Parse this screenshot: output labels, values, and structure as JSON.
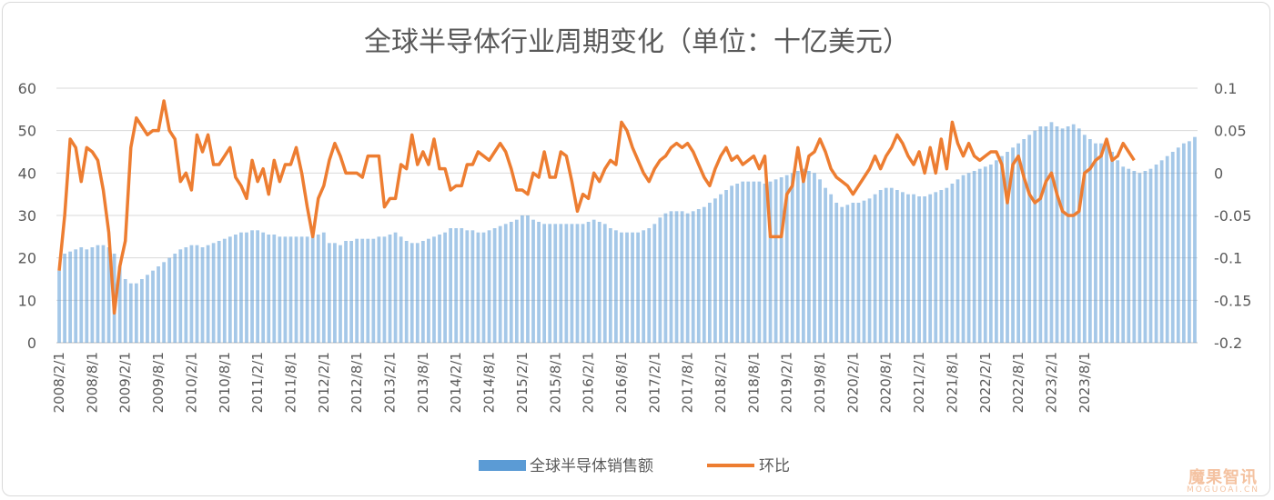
{
  "chart_data": {
    "type": "bar+line",
    "title": "全球半导体行业周期变化（单位：十亿美元）",
    "x_start": "2008/2/1",
    "x_tick_labels": [
      "2008/2/1",
      "2008/8/1",
      "2009/2/1",
      "2009/8/1",
      "2010/2/1",
      "2010/8/1",
      "2011/2/1",
      "2011/8/1",
      "2012/2/1",
      "2012/8/1",
      "2013/2/1",
      "2013/8/1",
      "2014/2/1",
      "2014/8/1",
      "2015/2/1",
      "2015/8/1",
      "2016/2/1",
      "2016/8/1",
      "2017/2/1",
      "2017/8/1",
      "2018/2/1",
      "2018/8/1",
      "2019/2/1",
      "2019/8/1",
      "2020/2/1",
      "2020/8/1",
      "2021/2/1",
      "2021/8/1",
      "2022/2/1",
      "2022/8/1",
      "2023/2/1",
      "2023/8/1"
    ],
    "y_left": {
      "ticks": [
        "0",
        "10",
        "20",
        "30",
        "40",
        "50",
        "60"
      ],
      "range": [
        0,
        60
      ]
    },
    "y_right": {
      "ticks": [
        "-0.2",
        "-0.15",
        "-0.1",
        "-0.05",
        "0",
        "0.05",
        "0.1"
      ],
      "range": [
        -0.2,
        0.1
      ]
    },
    "legend_position": "bottom",
    "series": [
      {
        "name": "全球半导体销售额",
        "type": "bar",
        "axis": "left",
        "color": "#5b9bd5",
        "values": [
          17,
          21,
          21.5,
          22,
          22.5,
          22,
          22.5,
          23,
          23,
          22.5,
          21,
          18,
          15,
          14,
          14,
          15,
          16,
          17,
          18,
          19,
          20,
          21,
          22,
          22.5,
          23,
          23,
          22.5,
          23,
          23.5,
          24,
          24.5,
          25,
          25.5,
          26,
          26,
          26.5,
          26.5,
          26,
          25.5,
          25.5,
          25,
          25,
          25,
          25,
          25,
          25,
          25,
          25.5,
          26,
          23.5,
          23.5,
          23,
          24,
          24,
          24.5,
          24.5,
          24.5,
          24.5,
          25,
          25,
          25.5,
          26,
          25,
          24,
          23.5,
          23.5,
          24,
          24.5,
          25,
          25.5,
          26,
          27,
          27,
          27,
          26.5,
          26.5,
          26,
          26,
          26.5,
          27,
          27.5,
          28,
          28.5,
          29,
          30,
          30,
          29,
          28.5,
          28,
          28,
          28,
          28,
          28,
          28,
          28,
          28,
          28.5,
          29,
          28.5,
          28,
          27,
          26.5,
          26,
          26,
          26,
          26,
          26.5,
          27,
          28,
          29.5,
          30.5,
          31,
          31,
          31,
          30.5,
          31,
          31.5,
          32,
          33,
          34,
          35,
          36,
          37,
          37.5,
          38,
          38,
          38,
          38,
          37.5,
          38,
          38.5,
          39,
          39.5,
          40,
          40.5,
          41,
          40.5,
          40,
          38.5,
          36.5,
          35,
          33,
          32,
          32.5,
          33,
          33,
          33.5,
          34,
          35,
          36,
          36.5,
          36.5,
          36,
          35.5,
          35,
          35,
          34.5,
          34.5,
          35,
          35.5,
          36,
          36.5,
          37.5,
          38.5,
          39.5,
          40,
          40.5,
          41,
          41.5,
          42,
          43,
          44,
          45,
          46,
          47,
          48,
          49,
          50,
          51,
          51,
          52,
          51,
          50.5,
          51,
          51.5,
          50.5,
          49,
          48,
          47,
          47,
          46.5,
          45,
          43,
          41.5,
          41,
          40.5,
          40,
          40.5,
          41,
          42,
          43,
          44,
          45,
          46,
          47,
          47.5,
          48.5
        ]
      },
      {
        "name": "环比",
        "type": "line",
        "axis": "right",
        "color": "#ed7d31",
        "values": [
          -0.115,
          -0.05,
          0.04,
          0.03,
          -0.01,
          0.03,
          0.025,
          0.015,
          -0.02,
          -0.07,
          -0.165,
          -0.11,
          -0.08,
          0.03,
          0.065,
          0.055,
          0.045,
          0.05,
          0.05,
          0.085,
          0.05,
          0.04,
          -0.01,
          0,
          -0.02,
          0.045,
          0.025,
          0.045,
          0.01,
          0.01,
          0.02,
          0.03,
          -0.005,
          -0.015,
          -0.03,
          0.015,
          -0.01,
          0.005,
          -0.025,
          0.015,
          -0.01,
          0.01,
          0.01,
          0.03,
          0,
          -0.04,
          -0.075,
          -0.03,
          -0.015,
          0.015,
          0.035,
          0.02,
          0,
          0,
          0,
          -0.005,
          0.02,
          0.02,
          0.02,
          -0.04,
          -0.03,
          -0.03,
          0.01,
          0.005,
          0.045,
          0.01,
          0.025,
          0.01,
          0.04,
          0.005,
          0.005,
          -0.02,
          -0.015,
          -0.015,
          0.01,
          0.01,
          0.025,
          0.02,
          0.015,
          0.025,
          0.035,
          0.025,
          0.005,
          -0.02,
          -0.02,
          -0.025,
          0,
          -0.005,
          0.025,
          -0.005,
          -0.005,
          0.025,
          0.02,
          -0.01,
          -0.045,
          -0.025,
          -0.03,
          0,
          -0.01,
          0.005,
          0.015,
          0.01,
          0.06,
          0.05,
          0.03,
          0.015,
          0,
          -0.01,
          0.005,
          0.015,
          0.02,
          0.03,
          0.035,
          0.03,
          0.035,
          0.025,
          0.01,
          -0.005,
          -0.015,
          0.005,
          0.02,
          0.03,
          0.015,
          0.02,
          0.01,
          0.015,
          0.02,
          0.005,
          0.02,
          -0.075,
          -0.075,
          -0.075,
          -0.025,
          -0.015,
          0.03,
          -0.01,
          0.02,
          0.025,
          0.04,
          0.025,
          0.005,
          -0.005,
          -0.01,
          -0.015,
          -0.025,
          -0.015,
          -0.005,
          0.005,
          0.02,
          0.005,
          0.02,
          0.03,
          0.045,
          0.035,
          0.02,
          0.01,
          0.025,
          0,
          0.03,
          0,
          0.04,
          0.005,
          0.06,
          0.035,
          0.02,
          0.035,
          0.02,
          0.015,
          0.02,
          0.025,
          0.025,
          0.01,
          -0.035,
          0.01,
          0.02,
          -0.005,
          -0.025,
          -0.035,
          -0.03,
          -0.01,
          0,
          -0.025,
          -0.045,
          -0.05,
          -0.05,
          -0.045,
          0,
          0.005,
          0.015,
          0.02,
          0.04,
          0.015,
          0.02,
          0.035,
          0.025,
          0.015
        ]
      }
    ]
  },
  "watermark": {
    "cn": "魔果智讯",
    "en": "MOGUOAI.CN"
  }
}
